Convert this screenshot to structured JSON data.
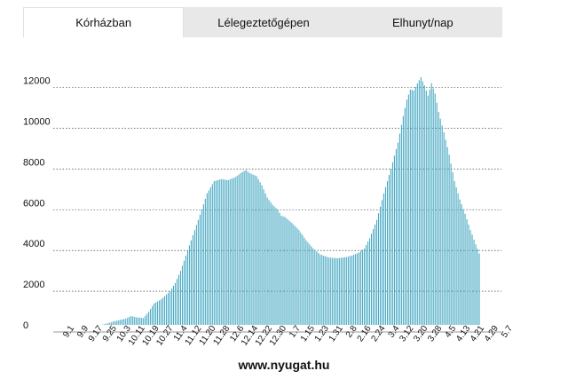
{
  "tabs": [
    {
      "label": "Kórházban",
      "active": true
    },
    {
      "label": "Lélegeztetőgépen",
      "active": false
    },
    {
      "label": "Elhunyt/nap",
      "active": false
    }
  ],
  "source": "www.nyugat.hu",
  "colors": {
    "bar": "#4aaac4",
    "grid": "#222222",
    "tab_bg": "#e8e8e8"
  },
  "chart_data": {
    "type": "bar",
    "title": "",
    "xlabel": "",
    "ylabel": "",
    "ylim": [
      0,
      12600
    ],
    "yticks": [
      0,
      2000,
      4000,
      6000,
      8000,
      10000,
      12000
    ],
    "grid": true,
    "tick_labels": [
      "9.1",
      "9.9",
      "9.17",
      "9.25",
      "10.3",
      "10.11",
      "10.19",
      "10.27",
      "11.4",
      "11.12",
      "11.20",
      "11.28",
      "12.6",
      "12.14",
      "12.22",
      "12.30",
      "1.7",
      "1.15",
      "1.23",
      "1.31",
      "2.8",
      "2.16",
      "2.24",
      "3.4",
      "3.12",
      "3.20",
      "3.28",
      "4.5",
      "4.13",
      "4.21",
      "4.29",
      "5.7"
    ],
    "anchors_day_value": [
      [
        0,
        50
      ],
      [
        5,
        120
      ],
      [
        10,
        220
      ],
      [
        15,
        330
      ],
      [
        20,
        430
      ],
      [
        25,
        560
      ],
      [
        30,
        650
      ],
      [
        33,
        780
      ],
      [
        36,
        720
      ],
      [
        40,
        680
      ],
      [
        43,
        1000
      ],
      [
        46,
        1400
      ],
      [
        50,
        1600
      ],
      [
        55,
        2000
      ],
      [
        58,
        2400
      ],
      [
        61,
        3000
      ],
      [
        65,
        4000
      ],
      [
        69,
        5000
      ],
      [
        73,
        6000
      ],
      [
        76,
        6800
      ],
      [
        80,
        7400
      ],
      [
        84,
        7500
      ],
      [
        88,
        7450
      ],
      [
        92,
        7600
      ],
      [
        96,
        7850
      ],
      [
        98,
        7950
      ],
      [
        100,
        7800
      ],
      [
        104,
        7650
      ],
      [
        107,
        7200
      ],
      [
        110,
        6600
      ],
      [
        113,
        6250
      ],
      [
        116,
        6000
      ],
      [
        118,
        5700
      ],
      [
        120,
        5650
      ],
      [
        124,
        5350
      ],
      [
        128,
        5000
      ],
      [
        132,
        4500
      ],
      [
        136,
        4100
      ],
      [
        140,
        3800
      ],
      [
        145,
        3650
      ],
      [
        150,
        3620
      ],
      [
        155,
        3680
      ],
      [
        158,
        3750
      ],
      [
        162,
        3900
      ],
      [
        165,
        4100
      ],
      [
        168,
        4600
      ],
      [
        172,
        5500
      ],
      [
        176,
        6800
      ],
      [
        180,
        8000
      ],
      [
        184,
        9300
      ],
      [
        187,
        10600
      ],
      [
        189,
        11400
      ],
      [
        191,
        11900
      ],
      [
        193,
        11850
      ],
      [
        195,
        12200
      ],
      [
        197,
        12500
      ],
      [
        199,
        12100
      ],
      [
        201,
        11600
      ],
      [
        203,
        12200
      ],
      [
        205,
        11700
      ],
      [
        207,
        10800
      ],
      [
        210,
        9800
      ],
      [
        213,
        8700
      ],
      [
        216,
        7400
      ],
      [
        219,
        6500
      ],
      [
        222,
        5800
      ],
      [
        225,
        5000
      ],
      [
        228,
        4300
      ],
      [
        230,
        3850
      ]
    ]
  }
}
